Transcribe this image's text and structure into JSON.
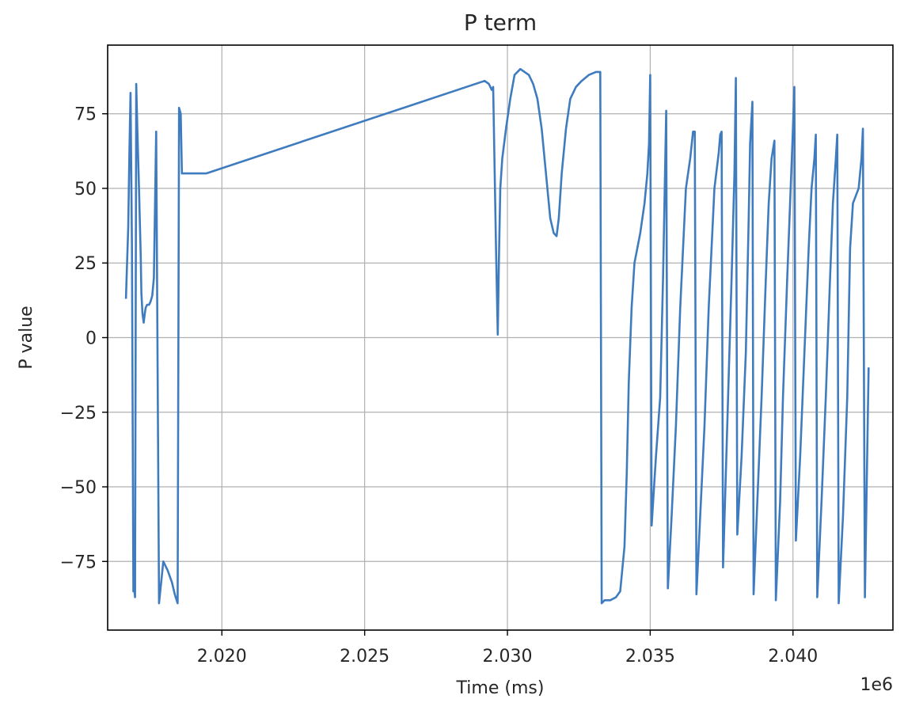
{
  "chart_data": {
    "type": "line",
    "title": "P term",
    "xlabel": "Time (ms)",
    "ylabel": "P value",
    "x_offset_label": "1e6",
    "xlim": [
      2.016,
      2.0435
    ],
    "ylim": [
      -98,
      98
    ],
    "x_ticks": [
      2.02,
      2.025,
      2.03,
      2.035,
      2.04
    ],
    "x_tick_labels": [
      "2.020",
      "2.025",
      "2.030",
      "2.035",
      "2.040"
    ],
    "y_ticks": [
      75,
      50,
      25,
      0,
      -25,
      -50,
      -75
    ],
    "y_tick_labels": [
      "75",
      "50",
      "25",
      "0",
      "−25",
      "−50",
      "−75"
    ],
    "grid": true,
    "line_color": "#3f7cbf",
    "series": [
      {
        "x": [
          2.01664,
          2.01666,
          2.01672,
          2.01676,
          2.0168,
          2.01685,
          2.0169,
          2.01693,
          2.01696,
          2.017,
          2.01704,
          2.0171,
          2.01716,
          2.01718,
          2.01722,
          2.01726,
          2.0173,
          2.01733,
          2.01738,
          2.01745,
          2.0175,
          2.01756,
          2.01762,
          2.0177,
          2.0178,
          2.01795,
          2.0181,
          2.01825,
          2.01835,
          2.01845,
          2.0185,
          2.01856,
          2.0186,
          2.01866,
          2.01872,
          2.0188,
          2.0189,
          2.0191,
          2.0193,
          2.01934,
          2.01938,
          2.01942,
          2.01945,
          2.0292,
          2.02935,
          2.02945,
          2.0295,
          2.0296,
          2.02966,
          2.0297,
          2.02975,
          2.02982,
          2.02995,
          2.0301,
          2.03025,
          2.03045,
          2.0306,
          2.03075,
          2.0309,
          2.03105,
          2.0312,
          2.03135,
          2.0315,
          2.03162,
          2.03172,
          2.0318,
          2.0319,
          2.03205,
          2.0322,
          2.0324,
          2.0326,
          2.03285,
          2.0331,
          2.0332,
          2.03325,
          2.0333,
          2.0334,
          2.0336,
          2.0338,
          2.03395,
          2.0341,
          2.03418,
          2.03425,
          2.03435,
          2.03445,
          2.03465,
          2.0348,
          2.0349,
          2.03496,
          2.035,
          2.03505,
          2.0352,
          2.03535,
          2.03545,
          2.0355,
          2.03556,
          2.03562,
          2.03575,
          2.0359,
          2.03605,
          2.03615,
          2.03625,
          2.0364,
          2.0365,
          2.03656,
          2.03662,
          2.03675,
          2.0369,
          2.03705,
          2.03715,
          2.03725,
          2.0374,
          2.03745,
          2.0375,
          2.03755,
          2.03765,
          2.03785,
          2.03795,
          2.038,
          2.03805,
          2.0382,
          2.03835,
          2.03845,
          2.0385,
          2.03858,
          2.03862,
          2.03875,
          2.0389,
          2.03905,
          2.03915,
          2.03925,
          2.03935,
          2.0394,
          2.03955,
          2.03965,
          2.0398,
          2.0399,
          2.03998,
          2.04005,
          2.0401,
          2.04025,
          2.0404,
          2.04055,
          2.04065,
          2.04075,
          2.0408,
          2.04085,
          2.041,
          2.04115,
          2.0413,
          2.0414,
          2.0415,
          2.04155,
          2.0416,
          2.04175,
          2.0419,
          2.042,
          2.0421,
          2.0423,
          2.0424,
          2.04245,
          2.04252,
          2.04265
        ],
        "y": [
          13,
          19,
          37,
          61,
          82,
          30,
          -85,
          -84,
          -87,
          85,
          70,
          49,
          27,
          15,
          8,
          5,
          8,
          10,
          11,
          11,
          12,
          14,
          20,
          69,
          -89,
          -75,
          -78,
          -82,
          -86,
          -89,
          77,
          75,
          55,
          55,
          55,
          55,
          55,
          55,
          55,
          55,
          55,
          55,
          55,
          86,
          85,
          83,
          84,
          30,
          1,
          25,
          50,
          60,
          70,
          80,
          88,
          90,
          89,
          88,
          85,
          80,
          70,
          55,
          40,
          35,
          34,
          40,
          55,
          70,
          80,
          84,
          86,
          88,
          89,
          89,
          89,
          -89,
          -88,
          -88,
          -87,
          -85,
          -70,
          -45,
          -15,
          10,
          25,
          35,
          45,
          55,
          65,
          88,
          -63,
          -40,
          -20,
          20,
          45,
          76,
          -84,
          -60,
          -30,
          10,
          30,
          50,
          60,
          69,
          69,
          -86,
          -60,
          -30,
          10,
          30,
          50,
          62,
          68,
          69,
          -77,
          -45,
          20,
          55,
          87,
          -66,
          -40,
          -5,
          40,
          65,
          79,
          -86,
          -55,
          -20,
          20,
          45,
          60,
          66,
          -88,
          -55,
          -20,
          20,
          45,
          65,
          84,
          -68,
          -40,
          -5,
          30,
          50,
          60,
          68,
          -87,
          -55,
          -20,
          20,
          45,
          60,
          68,
          -89,
          -60,
          -20,
          30,
          45,
          50,
          60,
          70,
          -87,
          -10
        ]
      }
    ]
  }
}
